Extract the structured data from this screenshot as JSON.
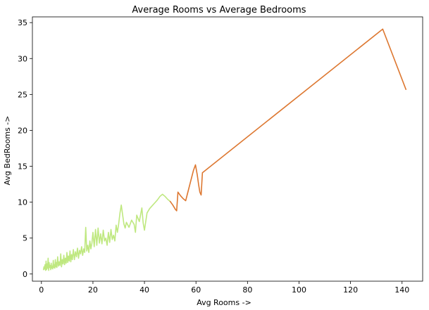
{
  "chart_data": {
    "type": "line",
    "title": "Average Rooms vs Average Bedrooms",
    "xlabel": "Avg Rooms  ->",
    "ylabel": "Avg BedRooms  ->",
    "xlim": [
      -3.5,
      148
    ],
    "ylim": [
      -1.0,
      35.8
    ],
    "xticks": [
      0,
      20,
      40,
      60,
      80,
      100,
      120,
      140
    ],
    "yticks": [
      0,
      5,
      10,
      15,
      20,
      25,
      30,
      35
    ],
    "grid": false,
    "series": [
      {
        "color": "#bfe880",
        "x": [
          0.8,
          1.0,
          1.2,
          1.4,
          1.6,
          1.8,
          2.0,
          2.2,
          2.4,
          2.6,
          2.8,
          3.0,
          3.2,
          3.4,
          3.6,
          3.8,
          4.0,
          4.2,
          4.4,
          4.6,
          4.8,
          5.0,
          5.2,
          5.4,
          5.6,
          5.8,
          6.0,
          6.3,
          6.6,
          6.9,
          7.2,
          7.5,
          7.8,
          8.1,
          8.4,
          8.7,
          9.0,
          9.3,
          9.6,
          9.9,
          10.2,
          10.5,
          10.8,
          11.1,
          11.4,
          11.7,
          12.0,
          12.4,
          12.8,
          13.2,
          13.6,
          14.0,
          14.4,
          14.8,
          15.2,
          15.6,
          16.0,
          16.4,
          16.8,
          17.2,
          17.6,
          18.0,
          18.4,
          18.8,
          19.2,
          19.6,
          20.0,
          20.5,
          21.0,
          21.5,
          22.0,
          22.5,
          23.0,
          23.5,
          24.0,
          24.5,
          25.0,
          25.5,
          26.0,
          26.5,
          27.0,
          27.5,
          28.0,
          28.5,
          29.0,
          29.5,
          30.0,
          30.5,
          31.0,
          31.5,
          32.0,
          32.5,
          33.0,
          34.0,
          35.0,
          36.0,
          36.5,
          37.0,
          38.0,
          39.0,
          39.5,
          40.0,
          41.0,
          42.0,
          43.0,
          44.0,
          45.0,
          46.0,
          47.0,
          48.0,
          49.0,
          50.0
        ],
        "y": [
          0.6,
          1.0,
          0.7,
          1.3,
          0.5,
          1.8,
          0.6,
          1.4,
          0.8,
          2.2,
          0.5,
          1.6,
          0.9,
          1.2,
          0.6,
          1.5,
          0.8,
          1.1,
          0.7,
          1.9,
          0.9,
          1.3,
          0.8,
          2.0,
          1.0,
          1.6,
          0.9,
          2.4,
          1.1,
          1.7,
          1.2,
          2.8,
          1.0,
          2.0,
          1.4,
          2.6,
          1.3,
          2.2,
          1.5,
          3.0,
          1.6,
          2.5,
          1.8,
          3.2,
          1.7,
          2.7,
          2.0,
          3.4,
          2.0,
          3.1,
          2.4,
          3.6,
          2.2,
          3.3,
          2.8,
          3.8,
          2.6,
          3.5,
          3.0,
          6.5,
          3.2,
          4.0,
          3.0,
          4.6,
          3.5,
          4.3,
          5.8,
          3.8,
          6.2,
          4.0,
          6.4,
          4.3,
          5.6,
          4.2,
          6.1,
          4.6,
          5.0,
          4.0,
          5.8,
          4.4,
          6.2,
          4.8,
          5.4,
          4.6,
          6.8,
          5.8,
          7.0,
          8.5,
          9.6,
          8.3,
          7.0,
          6.4,
          7.2,
          6.5,
          7.5,
          6.9,
          5.8,
          8.2,
          7.3,
          9.2,
          7.1,
          6.1,
          8.5,
          9.1,
          9.5,
          9.9,
          10.3,
          10.8,
          11.1,
          10.8,
          10.4,
          10.1
        ]
      },
      {
        "color": "#dd7730",
        "x": [
          50.0,
          51.0,
          52.0,
          52.5,
          53.0,
          54.0,
          55.0,
          56.0,
          57.0,
          58.0,
          59.0,
          59.8,
          60.5,
          61.0,
          61.5,
          62.0,
          62.5,
          132.5,
          141.5
        ],
        "y": [
          10.1,
          9.6,
          9.0,
          8.8,
          11.4,
          10.9,
          10.5,
          10.2,
          11.6,
          13.0,
          14.4,
          15.2,
          13.8,
          12.5,
          11.4,
          11.0,
          14.1,
          34.1,
          25.7
        ]
      }
    ]
  }
}
